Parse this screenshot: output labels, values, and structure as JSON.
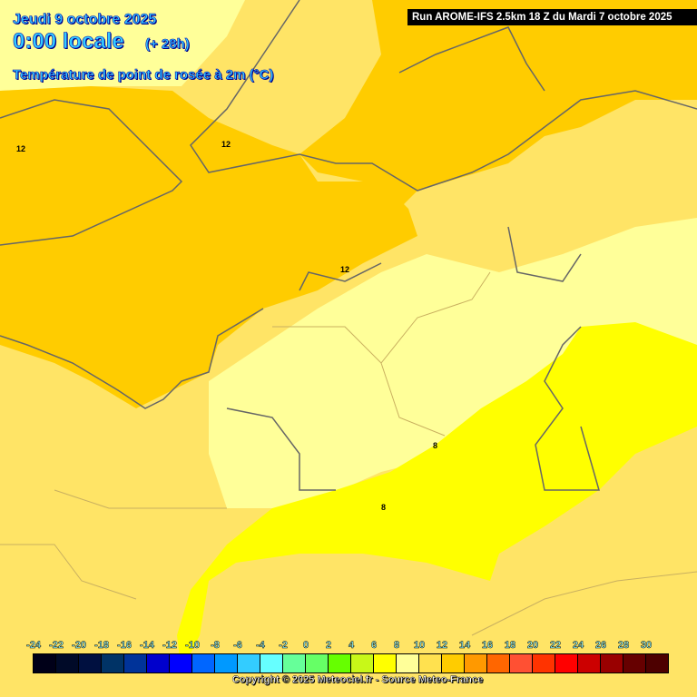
{
  "header": {
    "date": "Jeudi 9 octobre 2025",
    "time": "0:00 locale",
    "lead": "(+ 28h)",
    "parameter": "Température de point de rosée à 2m (°C)",
    "run": "Run AROME-IFS 2.5km 18 Z du Mardi 7 octobre 2025"
  },
  "contour_labels": [
    "12",
    "12",
    "12",
    "8",
    "8"
  ],
  "legend": {
    "labels": [
      "-24",
      "-22",
      "-20",
      "-18",
      "-16",
      "-14",
      "-12",
      "-10",
      "-8",
      "-6",
      "-4",
      "-2",
      "0",
      "2",
      "4",
      "6",
      "8",
      "10",
      "12",
      "14",
      "16",
      "18",
      "20",
      "22",
      "24",
      "26",
      "28",
      "30"
    ],
    "colors": [
      "#000018",
      "#000a28",
      "#001040",
      "#003366",
      "#003399",
      "#0000cc",
      "#0000ff",
      "#0066ff",
      "#0099ff",
      "#33ccff",
      "#66ffff",
      "#66ff99",
      "#66ff66",
      "#66ff00",
      "#c8f818",
      "#ffff00",
      "#ffff99",
      "#ffe14f",
      "#ffcc00",
      "#ff9900",
      "#ff6600",
      "#ff5033",
      "#ff3300",
      "#ff0000",
      "#cc0000",
      "#990000",
      "#660000",
      "#4d0000"
    ]
  },
  "copyright": "Copyright © 2025 Meteociel.fr - Source Meteo-France"
}
